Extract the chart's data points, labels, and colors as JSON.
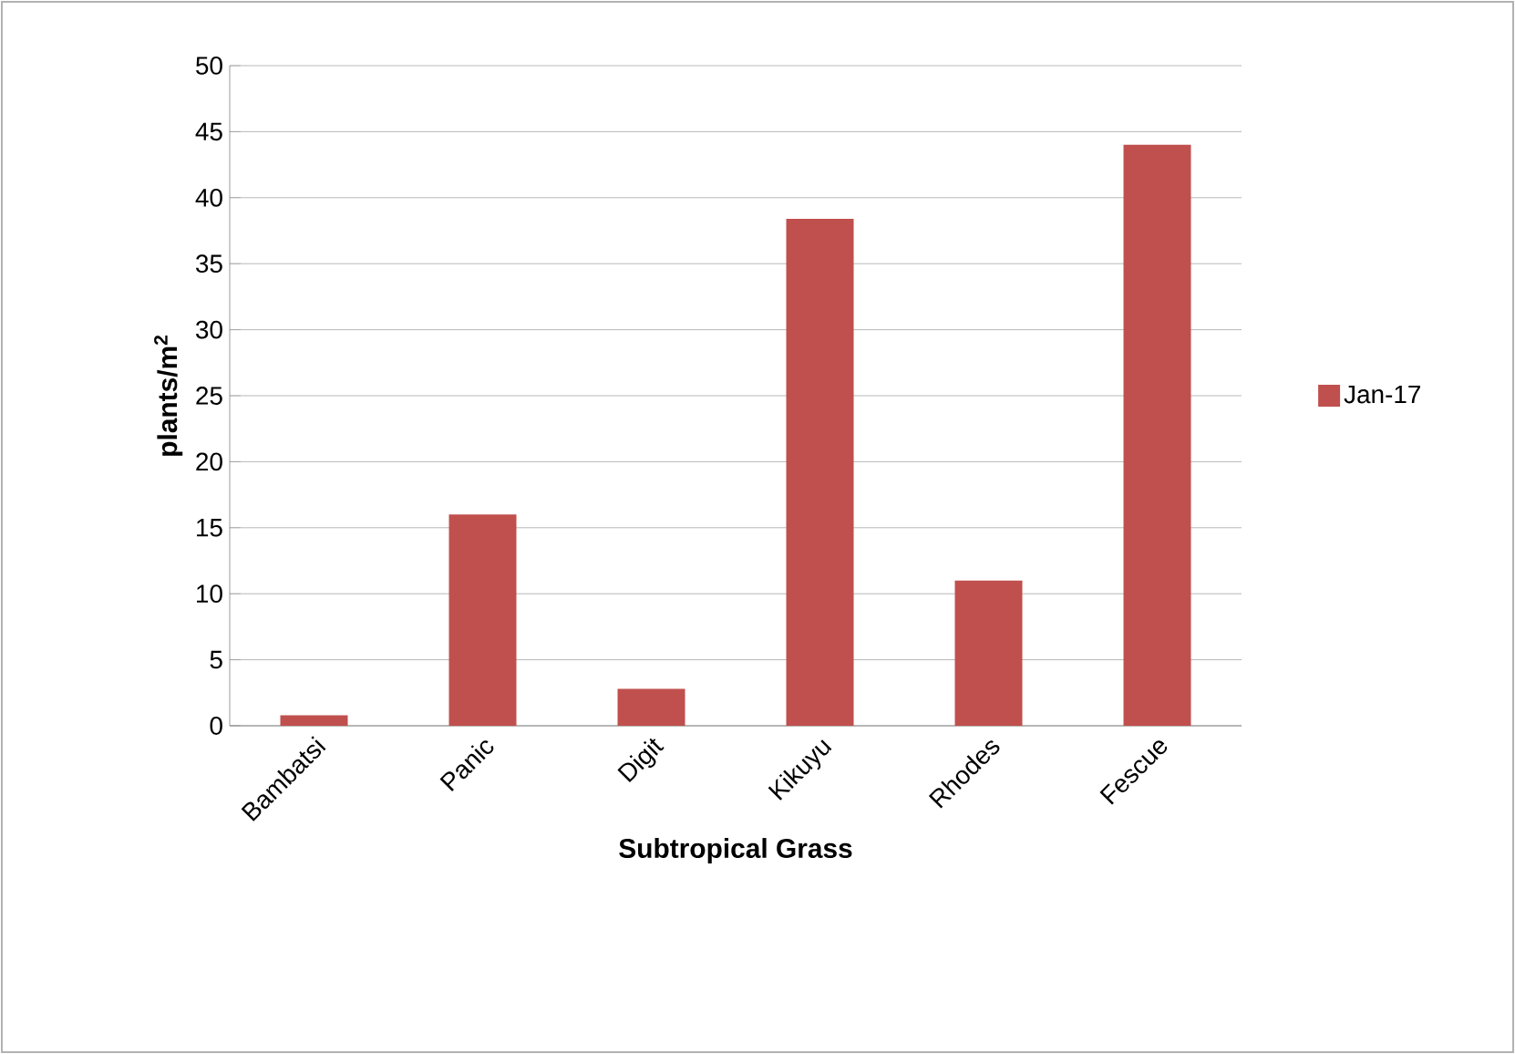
{
  "chart_data": {
    "type": "bar",
    "xlabel": "Subtropical Grass",
    "ylabel": "plants/m$^{2}$",
    "categories": [
      "Bambatsi",
      "Panic",
      "Digit",
      "Kikuyu",
      "Rhodes",
      "Fescue"
    ],
    "series": [
      {
        "name": "Jan-17",
        "color": "#c0504d",
        "values": [
          0.8,
          16,
          2.8,
          38.4,
          11,
          44
        ]
      }
    ],
    "ylim": [
      0,
      50
    ],
    "yticks": [
      0,
      5,
      10,
      15,
      20,
      25,
      30,
      35,
      40,
      45,
      50
    ],
    "grid": "y",
    "legend": "right"
  }
}
